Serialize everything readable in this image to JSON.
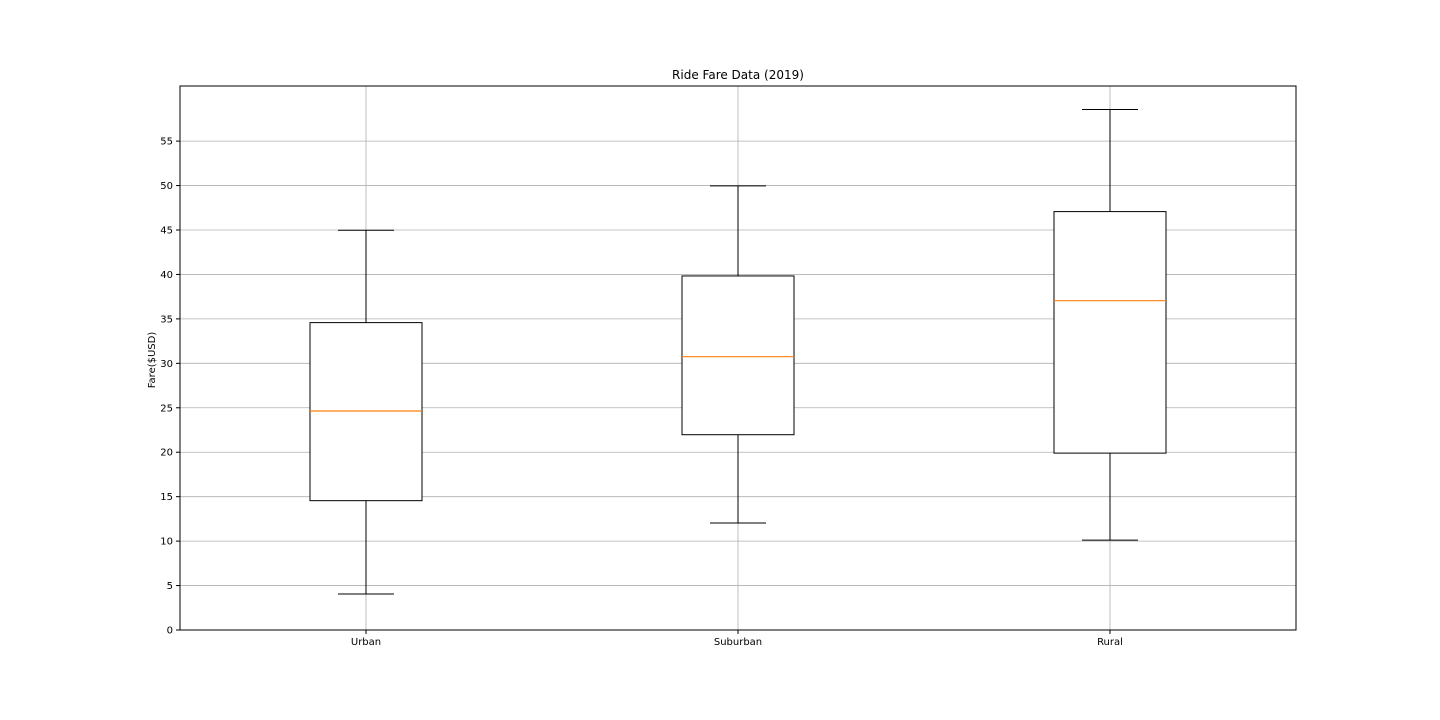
{
  "chart_data": {
    "type": "box",
    "title": "Ride Fare Data (2019)",
    "xlabel": "",
    "ylabel": "Fare($USD)",
    "ylim": [
      0,
      61.2
    ],
    "yticks": [
      0,
      5,
      10,
      15,
      20,
      25,
      30,
      35,
      40,
      45,
      50,
      55
    ],
    "grid": true,
    "categories": [
      "Urban",
      "Suburban",
      "Rural"
    ],
    "boxes": [
      {
        "category": "Urban",
        "whisker_low": 4.05,
        "q1": 14.55,
        "median": 24.64,
        "q3": 34.58,
        "whisker_high": 44.97
      },
      {
        "category": "Suburban",
        "whisker_low": 12.04,
        "q1": 21.97,
        "median": 30.75,
        "q3": 39.83,
        "whisker_high": 49.96
      },
      {
        "category": "Rural",
        "whisker_low": 10.11,
        "q1": 19.9,
        "median": 37.05,
        "q3": 47.07,
        "whisker_high": 58.55
      }
    ],
    "colors": {
      "box": "#000000",
      "median": "#ff7f0e",
      "grid": "#b0b0b0"
    }
  }
}
